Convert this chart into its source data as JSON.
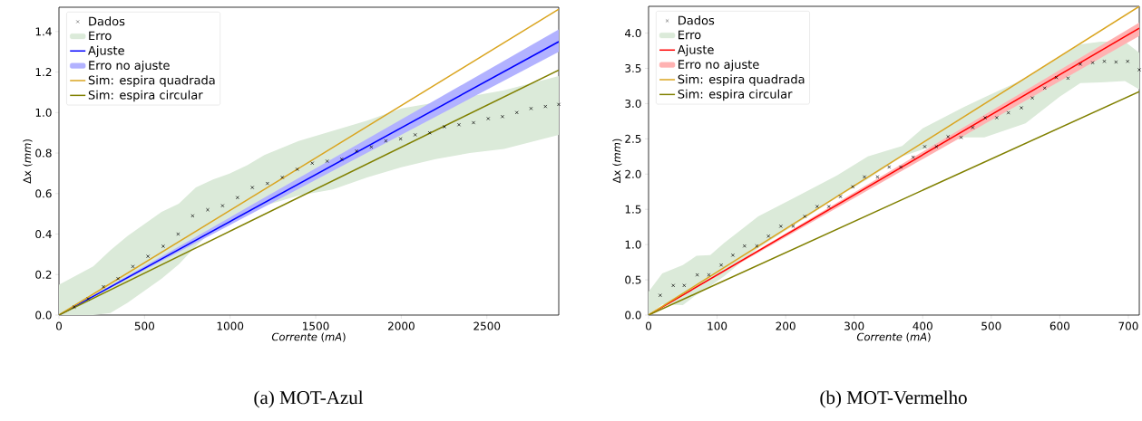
{
  "chart_data": [
    {
      "type": "line",
      "xlabel": "*Corrente* (*mA*)",
      "ylabel": "Δx (*mm*)",
      "annotations": [
        "(a) MOT-Azul"
      ],
      "legend": "top left",
      "xlim": [
        0,
        2920
      ],
      "ylim": [
        0,
        1.52
      ],
      "xticks": [
        0,
        500,
        1000,
        1500,
        2000,
        2500
      ],
      "yticks": [
        {
          "value": 0,
          "label": "0.0"
        },
        {
          "value": 0.2,
          "label": "0.2"
        },
        {
          "value": 0.4,
          "label": "0.4"
        },
        {
          "value": 0.6,
          "label": "0.6"
        },
        {
          "value": 0.8,
          "label": "0.8"
        },
        {
          "value": 1.0,
          "label": "1.0"
        },
        {
          "value": 1.2,
          "label": "1.2"
        },
        {
          "value": 1.4,
          "label": "1.4"
        }
      ],
      "series": [
        {
          "name": "Dados",
          "type": "scatter",
          "marker": "cross",
          "color": "#000000",
          "x": [
            89,
            171,
            260,
            345,
            432,
            520,
            609,
            696,
            781,
            869,
            956,
            1043,
            1130,
            1218,
            1305,
            1392,
            1480,
            1567,
            1652,
            1739,
            1825,
            1910,
            1996,
            2081,
            2166,
            2252,
            2337,
            2422,
            2508,
            2591,
            2675,
            2758,
            2842,
            2920
          ],
          "values": [
            0.04,
            0.08,
            0.14,
            0.18,
            0.24,
            0.29,
            0.34,
            0.4,
            0.49,
            0.52,
            0.54,
            0.58,
            0.63,
            0.65,
            0.68,
            0.72,
            0.75,
            0.76,
            0.77,
            0.81,
            0.83,
            0.86,
            0.87,
            0.89,
            0.9,
            0.93,
            0.94,
            0.95,
            0.97,
            0.98,
            1.0,
            1.02,
            1.03,
            1.04
          ]
        },
        {
          "name": "Erro",
          "type": "line",
          "color": "#dbead9",
          "x": [
            0,
            200,
            300,
            400,
            500,
            600,
            700,
            800,
            900,
            1000,
            1100,
            1200,
            1400,
            1600,
            1800,
            2000,
            2200,
            2400,
            2600,
            2920
          ],
          "values": [
            null,
            null,
            null,
            null,
            null,
            null,
            null,
            null,
            null,
            null,
            null,
            null,
            null,
            null,
            null,
            null,
            null,
            null,
            null,
            null
          ],
          "lower": [
            0,
            0,
            0.01,
            0.06,
            0.12,
            0.18,
            0.25,
            0.34,
            0.42,
            0.46,
            0.51,
            0.54,
            0.59,
            0.62,
            0.68,
            0.73,
            0.77,
            0.8,
            0.82,
            0.89
          ],
          "upper": [
            0.15,
            0.24,
            0.32,
            0.39,
            0.45,
            0.51,
            0.55,
            0.63,
            0.67,
            0.7,
            0.74,
            0.79,
            0.86,
            0.91,
            0.96,
            1.02,
            1.05,
            1.08,
            1.11,
            1.18
          ]
        },
        {
          "name": "Ajuste",
          "color": "#0000ff",
          "x": [
            0,
            2920
          ],
          "values": [
            0,
            1.35
          ]
        },
        {
          "name": "Erro no ajuste",
          "type": "line",
          "color": "#b2b2ff",
          "x": [
            0,
            2920
          ],
          "values": [
            null,
            null
          ],
          "lower": [
            0,
            1.3
          ],
          "upper": [
            0,
            1.41
          ]
        },
        {
          "name": "Sim: espira quadrada",
          "color": "#daa520",
          "x": [
            0,
            2920
          ],
          "values": [
            0,
            1.51
          ]
        },
        {
          "name": "Sim: espira circular",
          "color": "#808000",
          "x": [
            0,
            2920
          ],
          "values": [
            0,
            1.21
          ]
        }
      ]
    },
    {
      "type": "line",
      "xlabel": "*Corrente* (*mA*)",
      "ylabel": "Δx (*mm*)",
      "annotations": [
        "(b) MOT-Vermelho"
      ],
      "legend": "top left",
      "xlim": [
        0,
        716
      ],
      "ylim": [
        0,
        4.38
      ],
      "xticks": [
        0,
        100,
        200,
        300,
        400,
        500,
        600,
        700
      ],
      "yticks": [
        {
          "value": 0,
          "label": "0.0"
        },
        {
          "value": 0.5,
          "label": "0.5"
        },
        {
          "value": 1.0,
          "label": "1.0"
        },
        {
          "value": 1.5,
          "label": "1.5"
        },
        {
          "value": 2.0,
          "label": "2.0"
        },
        {
          "value": 2.5,
          "label": "2.5"
        },
        {
          "value": 3.0,
          "label": "3.0"
        },
        {
          "value": 3.5,
          "label": "3.5"
        },
        {
          "value": 4.0,
          "label": "4.0"
        }
      ],
      "series": [
        {
          "name": "Dados",
          "type": "scatter",
          "marker": "cross",
          "color": "#000000",
          "x": [
            17,
            36,
            52,
            71,
            88,
            106,
            123,
            140,
            158,
            175,
            193,
            211,
            228,
            246,
            263,
            280,
            298,
            315,
            334,
            351,
            368,
            386,
            403,
            420,
            437,
            456,
            473,
            491,
            508,
            525,
            544,
            560,
            578,
            595,
            612,
            630,
            648,
            665,
            682,
            699,
            716
          ],
          "values": [
            0.28,
            0.42,
            0.42,
            0.57,
            0.57,
            0.71,
            0.85,
            0.98,
            0.98,
            1.12,
            1.26,
            1.26,
            1.4,
            1.54,
            1.54,
            1.68,
            1.82,
            1.96,
            1.96,
            2.1,
            2.1,
            2.24,
            2.39,
            2.39,
            2.53,
            2.52,
            2.66,
            2.8,
            2.8,
            2.87,
            2.94,
            3.08,
            3.22,
            3.37,
            3.36,
            3.56,
            3.58,
            3.6,
            3.59,
            3.6,
            3.48
          ]
        },
        {
          "name": "Erro",
          "type": "line",
          "color": "#dbead9",
          "x": [
            0,
            20,
            50,
            70,
            90,
            110,
            160,
            210,
            275,
            320,
            370,
            400,
            460,
            490,
            550,
            600,
            630,
            660,
            695,
            716
          ],
          "values": [
            null,
            null,
            null,
            null,
            null,
            null,
            null,
            null,
            null,
            null,
            null,
            null,
            null,
            null,
            null,
            null,
            null,
            null,
            null,
            null
          ],
          "lower": [
            0,
            0.15,
            0.14,
            0.29,
            0.41,
            0.55,
            0.95,
            1.26,
            1.67,
            1.93,
            2.25,
            2.35,
            2.52,
            2.52,
            2.72,
            3.1,
            3.29,
            3.3,
            3.32,
            3.2
          ],
          "upper": [
            0.33,
            0.59,
            0.71,
            0.84,
            0.85,
            1.02,
            1.4,
            1.65,
            1.98,
            2.25,
            2.4,
            2.65,
            2.95,
            3.09,
            3.36,
            3.66,
            3.84,
            3.88,
            3.88,
            3.72
          ]
        },
        {
          "name": "Ajuste",
          "color": "#ff0000",
          "x": [
            0,
            716
          ],
          "values": [
            0,
            4.07
          ]
        },
        {
          "name": "Erro no ajuste",
          "type": "line",
          "color": "#ffb2b2",
          "x": [
            0,
            716
          ],
          "values": [
            null,
            null
          ],
          "lower": [
            0,
            3.96
          ],
          "upper": [
            0,
            4.15
          ]
        },
        {
          "name": "Sim: espira quadrada",
          "color": "#daa520",
          "x": [
            0,
            716
          ],
          "values": [
            0,
            4.38
          ]
        },
        {
          "name": "Sim: espira circular",
          "color": "#808000",
          "x": [
            0,
            716
          ],
          "values": [
            0,
            3.17
          ]
        }
      ]
    }
  ]
}
